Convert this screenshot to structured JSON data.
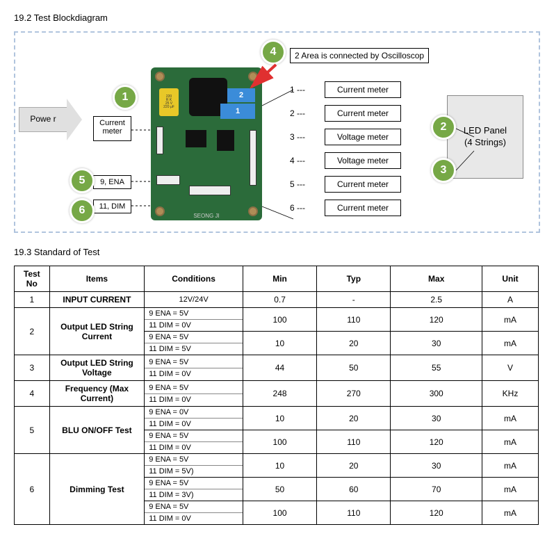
{
  "sections": {
    "diagram_title": "19.2 Test Blockdiagram",
    "standard_title": "19.3 Standard of Test"
  },
  "diagram": {
    "power_label": "Powe r",
    "current_meter_label": "Current meter",
    "ena_label": "9, ENA",
    "dim_label": "11, DIM",
    "note_text": "2 Area is connected by Oscilloscop",
    "board_blue_top": "2",
    "board_blue_bottom": "1",
    "board_cap_lines": [
      "220",
      "R K",
      "25 V",
      "220 μF"
    ],
    "board_footer": "SEONG JI",
    "meter_rows": [
      {
        "n": "1 ---",
        "label": "Current meter"
      },
      {
        "n": "2 ---",
        "label": "Current meter"
      },
      {
        "n": "3 ---",
        "label": "Voltage meter"
      },
      {
        "n": "4 ---",
        "label": "Voltage meter"
      },
      {
        "n": "5 ---",
        "label": "Current meter"
      },
      {
        "n": "6 ---",
        "label": "Current meter"
      }
    ],
    "led_panel_line1": "LED Panel",
    "led_panel_line2": "(4 Strings)",
    "badges": {
      "b1": "1",
      "b2": "2",
      "b3": "3",
      "b4": "4",
      "b5": "5",
      "b6": "6"
    },
    "badge_color": "#76a846",
    "arrow_color": "#e03030"
  },
  "table": {
    "headers": [
      "Test No",
      "Items",
      "Conditions",
      "Min",
      "Typ",
      "Max",
      "Unit"
    ],
    "rows": [
      {
        "no": "1",
        "item": "INPUT CURRENT",
        "cond_lines": [
          "12V/24V"
        ],
        "min": "0.7",
        "typ": "-",
        "max": "2.5",
        "unit": "A"
      },
      {
        "no": "",
        "item": "",
        "cond_lines": [
          "9 ENA = 5V",
          "11 DIM = 0V"
        ],
        "min": "100",
        "typ": "110",
        "max": "120",
        "unit": "mA",
        "merge_up_no": true,
        "merge_up_item": true,
        "_header_no": "2",
        "_header_item": "Output LED String Current"
      },
      {
        "no": "",
        "item": "",
        "cond_lines": [
          "9 ENA = 5V",
          "11 DIM = 5V"
        ],
        "min": "10",
        "typ": "20",
        "max": "30",
        "unit": "mA"
      },
      {
        "no": "3",
        "item": "Output LED String Voltage",
        "cond_lines": [
          "9 ENA = 5V",
          "11 DIM = 0V"
        ],
        "min": "44",
        "typ": "50",
        "max": "55",
        "unit": "V"
      },
      {
        "no": "4",
        "item": "Frequency (Max Current)",
        "cond_lines": [
          "9 ENA = 5V",
          "11 DIM = 0V"
        ],
        "min": "248",
        "typ": "270",
        "max": "300",
        "unit": "KHz"
      },
      {
        "no": "",
        "item": "",
        "cond_lines": [
          "9 ENA = 0V",
          "11 DIM = 0V"
        ],
        "min": "10",
        "typ": "20",
        "max": "30",
        "unit": "mA",
        "_header_no": "5",
        "_header_item": "BLU ON/OFF Test"
      },
      {
        "no": "",
        "item": "",
        "cond_lines": [
          "9 ENA = 5V",
          "11 DIM = 0V"
        ],
        "min": "100",
        "typ": "110",
        "max": "120",
        "unit": "mA"
      },
      {
        "no": "",
        "item": "",
        "cond_lines": [
          "9 ENA = 5V",
          "11 DIM = 5V)"
        ],
        "min": "10",
        "typ": "20",
        "max": "30",
        "unit": "mA",
        "_header_no": "6",
        "_header_item": "Dimming Test"
      },
      {
        "no": "",
        "item": "",
        "cond_lines": [
          "9 ENA = 5V",
          "11 DIM = 3V)"
        ],
        "min": "50",
        "typ": "60",
        "max": "70",
        "unit": "mA"
      },
      {
        "no": "",
        "item": "",
        "cond_lines": [
          "9 ENA = 5V",
          "11 DIM = 0V"
        ],
        "min": "100",
        "typ": "110",
        "max": "120",
        "unit": "mA"
      }
    ]
  }
}
